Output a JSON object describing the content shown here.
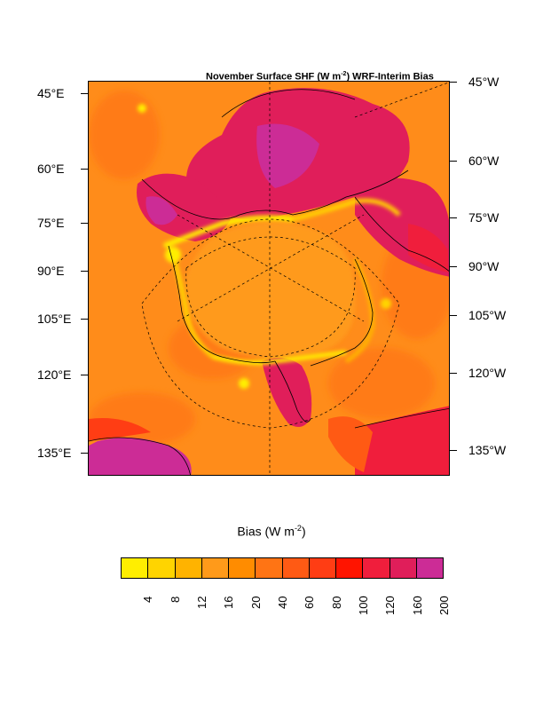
{
  "title": {
    "prefix": "November Surface SHF (W m",
    "exponent": "-2",
    "suffix": ") WRF-Interim Bias"
  },
  "left_axis_labels": [
    "45°E",
    "60°E",
    "75°E",
    "90°E",
    "105°E",
    "120°E",
    "135°E"
  ],
  "right_axis_labels": [
    "45°W",
    "60°W",
    "75°W",
    "90°W",
    "105°W",
    "120°W",
    "135°W"
  ],
  "legend": {
    "title": "Bias (W m",
    "exponent": "-2",
    "title_suffix": ")",
    "levels": [
      "4",
      "8",
      "12",
      "16",
      "20",
      "40",
      "60",
      "80",
      "100",
      "120",
      "160",
      "200"
    ],
    "colors": [
      "#ffee00",
      "#ffd400",
      "#ffb300",
      "#ff9a1a",
      "#ff8c00",
      "#ff7414",
      "#ff5a14",
      "#ff3d14",
      "#ff1400",
      "#f01e3c",
      "#e01e5a",
      "#cc2c96"
    ]
  },
  "map_colors": {
    "ocean_base": "#ff8c1a",
    "arctic_ocean": "#ff9a1a",
    "land_high": "#e01e5a",
    "land_max": "#cc2c96",
    "sea_ice_edge": "#ffee00"
  }
}
